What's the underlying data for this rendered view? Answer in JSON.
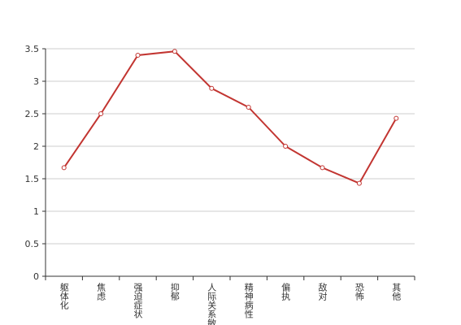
{
  "chart_data": {
    "type": "line",
    "categories": [
      "躯体化",
      "焦虑",
      "强迫症状",
      "抑郁",
      "人际关系敏",
      "精神病性",
      "偏执",
      "敌对",
      "恐怖",
      "其他"
    ],
    "values": [
      1.67,
      2.5,
      3.4,
      3.46,
      2.89,
      2.6,
      2.0,
      1.67,
      1.43,
      2.43
    ],
    "color": "#c23531",
    "ylim": [
      0,
      3.5
    ],
    "yticks": [
      0,
      0.5,
      1,
      1.5,
      2,
      2.5,
      3,
      3.5
    ],
    "grid": true
  }
}
